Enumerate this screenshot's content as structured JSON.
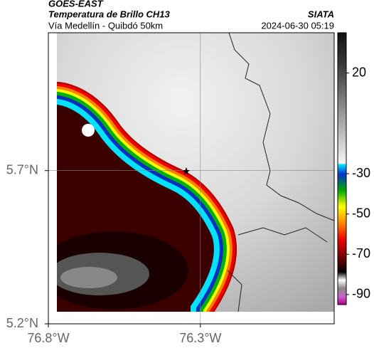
{
  "header": {
    "source": "GOES-EAST",
    "title": "Temperatura de Brillo CH13",
    "org": "SIATA",
    "route": "Vía Medellín - Quibdó 50km",
    "timestamp": "2024-06-30 05:19"
  },
  "map": {
    "xlim": [
      -76.8,
      -75.86
    ],
    "ylim": [
      5.2,
      6.15
    ],
    "xticks": [
      {
        "value": -76.8,
        "label": "76.8°W"
      },
      {
        "value": -76.3,
        "label": "76.3°W"
      }
    ],
    "yticks": [
      {
        "value": 5.2,
        "label": "5.2°N"
      },
      {
        "value": 5.7,
        "label": "5.7°N"
      }
    ],
    "grid": true
  },
  "colorbar": {
    "lim": [
      -95,
      40
    ],
    "ticks": [
      20,
      -30,
      -50,
      -70,
      -90
    ]
  }
}
